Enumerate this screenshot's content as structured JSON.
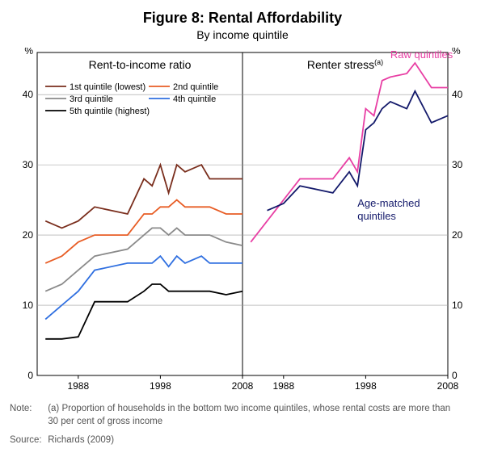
{
  "title": "Figure 8: Rental Affordability",
  "subtitle": "By income quintile",
  "note_label": "Note:",
  "note_body": "(a) Proportion of households in the bottom two income quintiles, whose rental costs are more than 30 per cent of gross income",
  "source_label": "Source:",
  "source_body": "Richards (2009)",
  "axis": {
    "ylabel_left": "%",
    "ylabel_right": "%",
    "ymin": 0,
    "ymax": 46,
    "yticks": [
      0,
      10,
      20,
      30,
      40
    ],
    "xmin": 1983,
    "xmax": 2008,
    "xticks": [
      1988,
      1998,
      2008
    ]
  },
  "panels": {
    "left_title": "Rent-to-income ratio",
    "right_title": "Renter stress",
    "right_title_sup": "(a)"
  },
  "legend": {
    "q1": "1st quintile (lowest)",
    "q2": "2nd quintile",
    "q3": "3rd quintile",
    "q4": "4th quintile",
    "q5": "5th quintile (highest)",
    "raw": "Raw quintiles",
    "age": "Age-matched quintiles"
  },
  "colors": {
    "q1": "#7a2e1d",
    "q2": "#e85d25",
    "q3": "#8a8a8a",
    "q4": "#2f6fe0",
    "q5": "#000000",
    "raw": "#e83fa4",
    "age": "#141a6b",
    "grid": "#999999",
    "border": "#000000",
    "bg": "#ffffff"
  },
  "style": {
    "line_width": 1.8,
    "panel_title_fontsize": 14,
    "legend_fontsize": 11,
    "tick_fontsize": 12,
    "inline_label_fontsize": 13
  },
  "series_left": {
    "x": [
      1984,
      1986,
      1988,
      1990,
      1994,
      1996,
      1997,
      1998,
      1999,
      2000,
      2001,
      2003,
      2004,
      2006,
      2008
    ],
    "q1": [
      22,
      21,
      22,
      24,
      23,
      28,
      27,
      30,
      26,
      30,
      29,
      30,
      28,
      28,
      28
    ],
    "q2": [
      16,
      17,
      19,
      20,
      20,
      23,
      23,
      24,
      24,
      25,
      24,
      24,
      24,
      23,
      23
    ],
    "q3": [
      12,
      13,
      15,
      17,
      18,
      20,
      21,
      21,
      20,
      21,
      20,
      20,
      20,
      19,
      18.5
    ],
    "q4": [
      8,
      10,
      12,
      15,
      16,
      16,
      16,
      17,
      15.5,
      17,
      16,
      17,
      16,
      16,
      16
    ],
    "q5": [
      5.2,
      5.2,
      5.5,
      10.5,
      10.5,
      12,
      13,
      13,
      12,
      12,
      12,
      12,
      12,
      11.5,
      12
    ]
  },
  "series_right": {
    "x": [
      1984,
      1986,
      1988,
      1990,
      1994,
      1996,
      1997,
      1998,
      1999,
      2000,
      2001,
      2003,
      2004,
      2006,
      2008
    ],
    "raw": [
      19,
      22,
      25,
      28,
      28,
      31,
      29,
      38,
      37,
      42,
      42.5,
      43,
      44.5,
      41,
      41
    ],
    "age": [
      null,
      23.5,
      24.5,
      27,
      26,
      29,
      27,
      35,
      36,
      38,
      39,
      38,
      40.5,
      36,
      37
    ]
  }
}
